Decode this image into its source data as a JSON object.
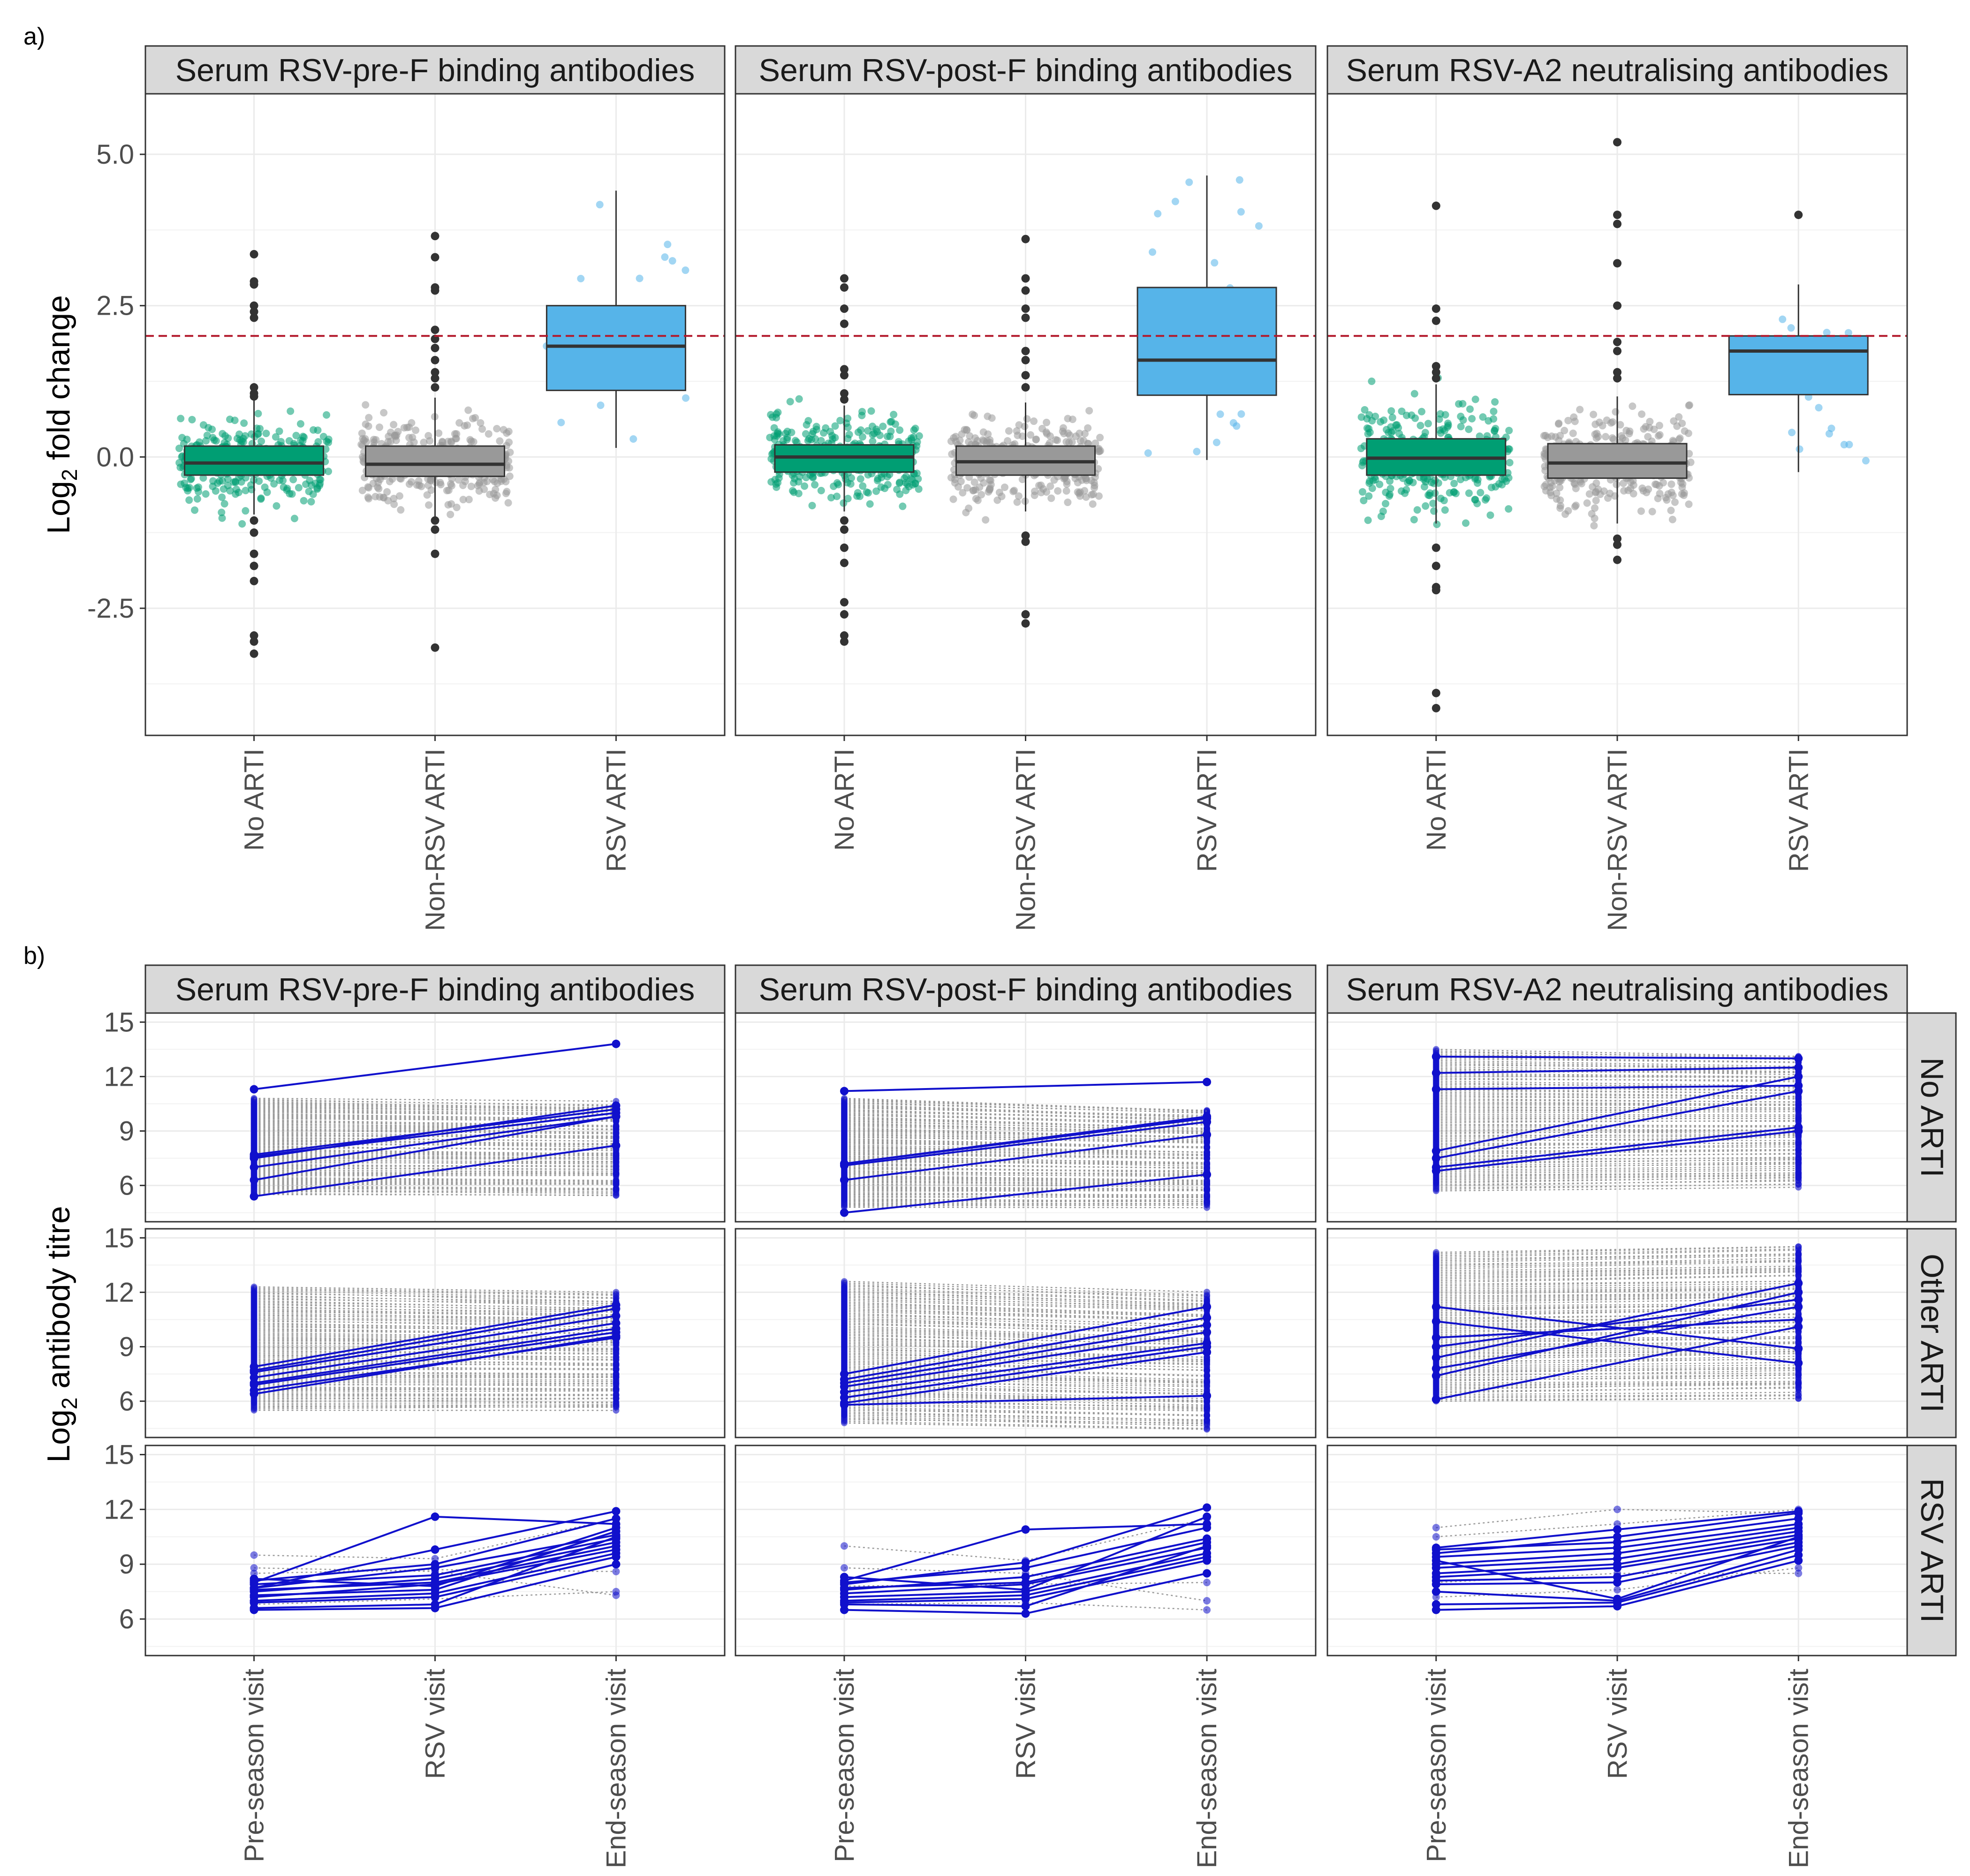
{
  "figure": {
    "panel_a_letter": "a)",
    "panel_b_letter": "b)",
    "panel_a_ylabel": {
      "prefix": "Log",
      "sub": "2",
      "suffix": " fold change"
    },
    "panel_b_ylabel": {
      "prefix": "Log",
      "sub": "2",
      "suffix": " antibody titre"
    },
    "facet_titles": [
      "Serum RSV-pre-F binding antibodies",
      "Serum RSV-post-F binding antibodies",
      "Serum RSV-A2 neutralising antibodies"
    ],
    "row_strip_titles": [
      "No ARTI",
      "Other ARTI",
      "RSV ARTI"
    ]
  },
  "colors": {
    "no_arti": "#009E73",
    "non_rsv_arti": "#999999",
    "rsv_arti": "#56B4E9",
    "outlier": "#333333",
    "threshold": "#B2182B",
    "rsv_line": "#1010CC",
    "other_line": "#9a9a9a",
    "strip_fill": "#d9d9d9",
    "grid": "#ebebeb"
  },
  "chart_data": [
    {
      "type": "box",
      "title": "a)",
      "ylabel": "Log2 fold change",
      "ylim": [
        -4.6,
        6.0
      ],
      "yticks": [
        -2.5,
        0.0,
        2.5,
        5.0
      ],
      "ytick_labels": [
        "-2.5",
        "0.0",
        "2.5",
        "5.0"
      ],
      "reference_line": {
        "y": 2,
        "style": "dashed",
        "color": "red"
      },
      "categories": [
        "No ARTI",
        "Non-RSV ARTI",
        "RSV ARTI"
      ],
      "facets": [
        {
          "title": "Serum RSV-pre-F binding antibodies",
          "boxes": [
            {
              "category": "No ARTI",
              "q1": -0.3,
              "median": -0.1,
              "q3": 0.18,
              "whisker_low": -0.95,
              "whisker_high": 0.95,
              "outliers": [
                3.35,
                2.9,
                2.85,
                2.5,
                2.4,
                2.3,
                1.15,
                1.05,
                1.0,
                -1.05,
                -1.25,
                -1.6,
                -1.8,
                -2.05,
                -2.95,
                -3.05,
                -3.25
              ]
            },
            {
              "category": "Non-RSV ARTI",
              "q1": -0.32,
              "median": -0.12,
              "q3": 0.18,
              "whisker_low": -1.0,
              "whisker_high": 0.98,
              "outliers": [
                3.65,
                3.3,
                2.8,
                2.75,
                2.1,
                1.95,
                1.8,
                1.6,
                1.4,
                1.3,
                1.15,
                -1.05,
                -1.2,
                -1.6,
                -3.15
              ]
            },
            {
              "category": "RSV ARTI",
              "q1": 1.1,
              "median": 1.83,
              "q3": 2.5,
              "whisker_low": 0.15,
              "whisker_high": 4.4,
              "outliers": []
            }
          ]
        },
        {
          "title": "Serum RSV-post-F binding antibodies",
          "boxes": [
            {
              "category": "No ARTI",
              "q1": -0.25,
              "median": 0.0,
              "q3": 0.2,
              "whisker_low": -0.9,
              "whisker_high": 0.85,
              "outliers": [
                2.95,
                2.8,
                2.45,
                2.2,
                1.45,
                1.35,
                1.05,
                0.95,
                -1.05,
                -1.2,
                -1.5,
                -1.75,
                -2.4,
                -2.6,
                -2.95,
                -3.05
              ]
            },
            {
              "category": "Non-RSV ARTI",
              "q1": -0.3,
              "median": -0.08,
              "q3": 0.18,
              "whisker_low": -0.9,
              "whisker_high": 0.9,
              "outliers": [
                3.6,
                2.95,
                2.75,
                2.45,
                2.3,
                1.75,
                1.6,
                1.35,
                1.15,
                -1.3,
                -1.4,
                -2.6,
                -2.75
              ]
            },
            {
              "category": "RSV ARTI",
              "q1": 1.02,
              "median": 1.6,
              "q3": 2.8,
              "whisker_low": -0.05,
              "whisker_high": 4.65,
              "outliers": []
            }
          ]
        },
        {
          "title": "Serum RSV-A2 neutralising antibodies",
          "boxes": [
            {
              "category": "No ARTI",
              "q1": -0.3,
              "median": -0.02,
              "q3": 0.3,
              "whisker_low": -1.1,
              "whisker_high": 1.2,
              "outliers": [
                4.15,
                2.45,
                2.25,
                1.5,
                1.4,
                1.3,
                -1.5,
                -1.8,
                -2.15,
                -2.2,
                -3.9,
                -4.15
              ]
            },
            {
              "category": "Non-RSV ARTI",
              "q1": -0.35,
              "median": -0.1,
              "q3": 0.22,
              "whisker_low": -1.1,
              "whisker_high": 1.0,
              "outliers": [
                5.2,
                4.0,
                3.85,
                3.2,
                2.5,
                1.9,
                1.75,
                1.4,
                1.3,
                -1.35,
                -1.45,
                -1.7
              ]
            },
            {
              "category": "RSV ARTI",
              "q1": 1.03,
              "median": 1.75,
              "q3": 2.0,
              "whisker_low": -0.25,
              "whisker_high": 2.85,
              "outliers": [
                4.0
              ]
            }
          ]
        }
      ]
    },
    {
      "type": "line",
      "title": "b)",
      "ylabel": "Log2 antibody titre",
      "ylim": [
        4,
        15.5
      ],
      "yticks": [
        6,
        9,
        12,
        15
      ],
      "ytick_labels": [
        "6",
        "9",
        "12",
        "15"
      ],
      "x": [
        "Pre-season visit",
        "RSV visit",
        "End-season visit"
      ],
      "rows": [
        "No ARTI",
        "Other ARTI",
        "RSV ARTI"
      ],
      "columns": [
        "Serum RSV-pre-F binding antibodies",
        "Serum RSV-post-F binding antibodies",
        "Serum RSV-A2 neutralising antibodies"
      ],
      "panels": [
        {
          "row": "No ARTI",
          "column": "Serum RSV-pre-F binding antibodies",
          "grey_range_pre": [
            5.5,
            10.8
          ],
          "grey_range_end": [
            5.5,
            10.5
          ],
          "rsv_lines": [
            [
              11.3,
              13.8
            ],
            [
              7.7,
              10.2
            ],
            [
              7.5,
              10.4
            ],
            [
              7.6,
              10.0
            ],
            [
              7.0,
              9.8
            ],
            [
              6.3,
              9.8
            ],
            [
              5.4,
              8.2
            ]
          ]
        },
        {
          "row": "No ARTI",
          "column": "Serum RSV-post-F binding antibodies",
          "grey_range_pre": [
            4.8,
            10.8
          ],
          "grey_range_end": [
            4.8,
            10.2
          ],
          "rsv_lines": [
            [
              11.2,
              11.7
            ],
            [
              7.2,
              9.8
            ],
            [
              7.2,
              9.7
            ],
            [
              7.1,
              9.5
            ],
            [
              6.3,
              8.8
            ],
            [
              4.5,
              6.6
            ]
          ]
        },
        {
          "row": "No ARTI",
          "column": "Serum RSV-A2 neutralising antibodies",
          "grey_range_pre": [
            5.7,
            13.5
          ],
          "grey_range_end": [
            6.0,
            13.2
          ],
          "rsv_lines": [
            [
              13.1,
              13.0
            ],
            [
              12.2,
              12.5
            ],
            [
              11.3,
              11.5
            ],
            [
              7.9,
              12.0
            ],
            [
              7.5,
              11.2
            ],
            [
              7.0,
              9.2
            ],
            [
              6.8,
              9.0
            ]
          ]
        },
        {
          "row": "Other ARTI",
          "column": "Serum RSV-pre-F binding antibodies",
          "grey_range_pre": [
            5.5,
            12.3
          ],
          "grey_range_end": [
            5.6,
            11.9
          ],
          "rsv_lines": [
            [
              7.9,
              11.3
            ],
            [
              7.7,
              11.1
            ],
            [
              7.6,
              10.7
            ],
            [
              7.3,
              10.3
            ],
            [
              7.0,
              10.0
            ],
            [
              6.9,
              9.8
            ],
            [
              6.6,
              9.5
            ],
            [
              6.4,
              9.6
            ]
          ]
        },
        {
          "row": "Other ARTI",
          "column": "Serum RSV-post-F binding antibodies",
          "grey_range_pre": [
            4.8,
            12.6
          ],
          "grey_range_end": [
            4.5,
            11.9
          ],
          "rsv_lines": [
            [
              7.5,
              11.2
            ],
            [
              7.2,
              10.6
            ],
            [
              7.0,
              10.2
            ],
            [
              6.8,
              9.8
            ],
            [
              6.5,
              9.2
            ],
            [
              6.2,
              9.0
            ],
            [
              5.9,
              8.7
            ],
            [
              5.8,
              6.3
            ]
          ]
        },
        {
          "row": "Other ARTI",
          "column": "Serum RSV-A2 neutralising antibodies",
          "grey_range_pre": [
            6.0,
            14.2
          ],
          "grey_range_end": [
            6.2,
            14.5
          ],
          "rsv_lines": [
            [
              11.2,
              8.9
            ],
            [
              10.4,
              8.1
            ],
            [
              9.5,
              10.5
            ],
            [
              9.0,
              11.6
            ],
            [
              8.4,
              12.5
            ],
            [
              7.8,
              11.2
            ],
            [
              7.4,
              12.0
            ],
            [
              6.1,
              10.1
            ]
          ]
        },
        {
          "row": "RSV ARTI",
          "column": "Serum RSV-pre-F binding antibodies",
          "rsv_series": [
            [
              8.0,
              11.6,
              11.2
            ],
            [
              7.7,
              9.8,
              11.9
            ],
            [
              8.1,
              9.0,
              11.5
            ],
            [
              7.7,
              8.8,
              10.6
            ],
            [
              7.9,
              8.4,
              10.4
            ],
            [
              7.5,
              8.2,
              10.2
            ],
            [
              7.6,
              8.0,
              10.0
            ],
            [
              7.2,
              7.9,
              9.8
            ],
            [
              7.3,
              7.6,
              10.8
            ],
            [
              7.0,
              7.4,
              9.6
            ],
            [
              6.9,
              7.2,
              9.4
            ],
            [
              6.6,
              6.8,
              10.5
            ],
            [
              6.5,
              6.6,
              9.0
            ],
            [
              8.2,
              7.8,
              11.0
            ]
          ],
          "grey_series": [
            [
              9.5,
              9.3,
              11.5
            ],
            [
              8.8,
              8.6,
              7.3
            ],
            [
              8.5,
              8.7,
              8.6
            ],
            [
              6.8,
              7.1,
              7.5
            ]
          ]
        },
        {
          "row": "RSV ARTI",
          "column": "Serum RSV-post-F binding antibodies",
          "rsv_series": [
            [
              8.1,
              10.9,
              11.2
            ],
            [
              7.9,
              9.1,
              12.1
            ],
            [
              8.0,
              8.8,
              11.0
            ],
            [
              7.6,
              8.3,
              10.4
            ],
            [
              7.7,
              8.0,
              10.2
            ],
            [
              7.4,
              7.9,
              9.9
            ],
            [
              7.2,
              7.5,
              9.6
            ],
            [
              7.0,
              7.3,
              9.4
            ],
            [
              6.9,
              7.1,
              9.2
            ],
            [
              6.8,
              6.7,
              10.0
            ],
            [
              6.5,
              6.3,
              8.5
            ],
            [
              8.3,
              7.6,
              11.6
            ]
          ],
          "grey_series": [
            [
              10.0,
              9.2,
              11.5
            ],
            [
              8.8,
              8.5,
              7.0
            ],
            [
              7.8,
              7.9,
              8.0
            ],
            [
              6.8,
              6.9,
              6.5
            ]
          ]
        },
        {
          "row": "RSV ARTI",
          "column": "Serum RSV-A2 neutralising antibodies",
          "rsv_series": [
            [
              9.9,
              10.9,
              11.9
            ],
            [
              9.6,
              10.5,
              11.8
            ],
            [
              9.8,
              10.2,
              11.5
            ],
            [
              9.4,
              9.9,
              11.2
            ],
            [
              9.0,
              9.6,
              11.0
            ],
            [
              8.8,
              9.3,
              10.8
            ],
            [
              8.5,
              9.0,
              10.6
            ],
            [
              8.3,
              8.8,
              10.4
            ],
            [
              8.1,
              8.3,
              10.2
            ],
            [
              7.9,
              8.0,
              10.0
            ],
            [
              7.5,
              7.0,
              9.8
            ],
            [
              6.8,
              6.9,
              9.5
            ],
            [
              6.5,
              6.7,
              9.2
            ],
            [
              9.2,
              7.1,
              10.5
            ]
          ],
          "grey_series": [
            [
              11.0,
              12.0,
              11.8
            ],
            [
              8.0,
              8.5,
              8.5
            ],
            [
              7.2,
              7.6,
              8.8
            ],
            [
              10.5,
              11.2,
              12.0
            ]
          ]
        }
      ]
    }
  ]
}
